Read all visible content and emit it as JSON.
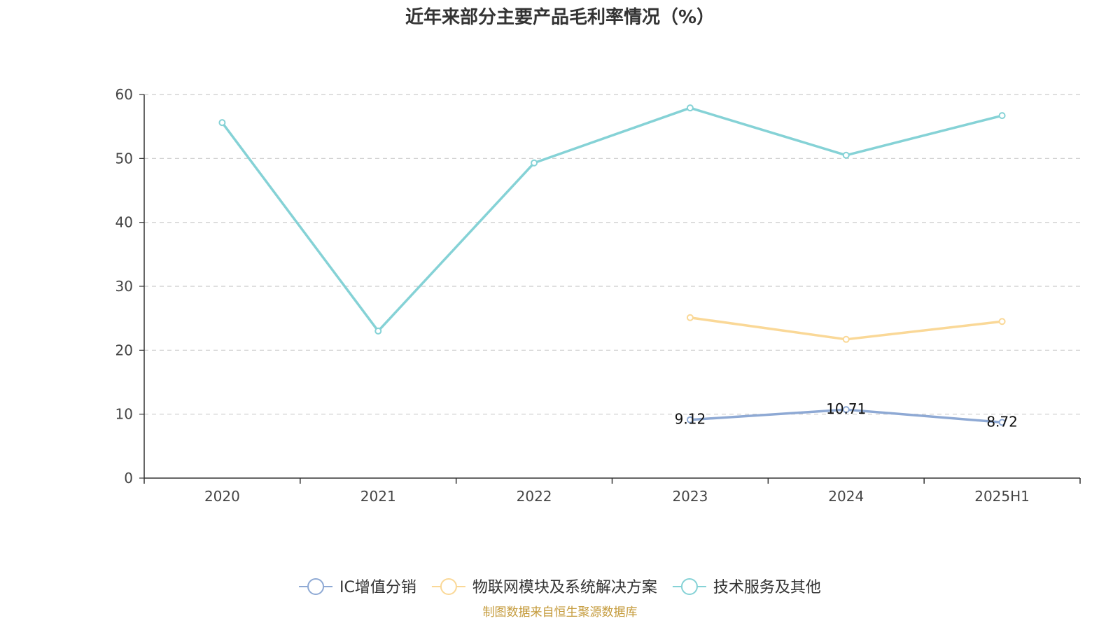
{
  "chart_data": {
    "type": "line",
    "title": "近年来部分主要产品毛利率情况（%）",
    "xlabel": "",
    "ylabel": "",
    "categories": [
      "2020",
      "2021",
      "2022",
      "2023",
      "2024",
      "2025H1"
    ],
    "ylim": [
      0,
      60
    ],
    "yticks": [
      0,
      10,
      20,
      30,
      40,
      50,
      60
    ],
    "grid": "horizontal-dashed",
    "legend_position": "bottom",
    "series": [
      {
        "name": "IC增值分销",
        "color": "#8ea9d4",
        "values": [
          null,
          null,
          null,
          9.12,
          10.71,
          8.72
        ],
        "labels": [
          null,
          null,
          null,
          "9.12",
          "10.71",
          "8.72"
        ]
      },
      {
        "name": "物联网模块及系统解决方案",
        "color": "#fad897",
        "values": [
          null,
          null,
          null,
          25.1,
          21.7,
          24.5
        ],
        "labels": [
          null,
          null,
          null,
          null,
          null,
          null
        ]
      },
      {
        "name": "技术服务及其他",
        "color": "#85d2d6",
        "values": [
          55.6,
          23.0,
          49.3,
          57.9,
          50.5,
          56.7
        ],
        "labels": [
          null,
          null,
          null,
          null,
          null,
          null
        ]
      }
    ]
  },
  "source": {
    "text": "制图数据来自恒生聚源数据库",
    "color": "#c49a3a"
  }
}
